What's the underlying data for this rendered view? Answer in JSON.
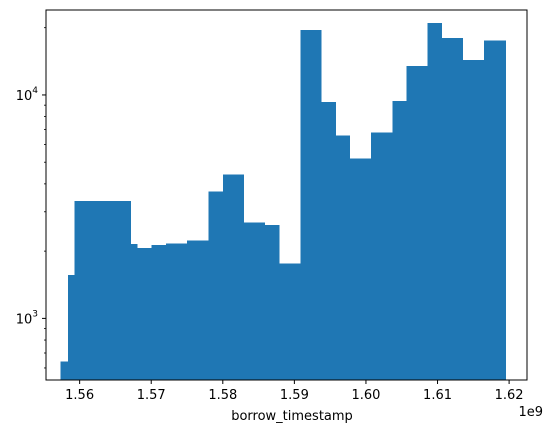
{
  "chart_data": {
    "type": "bar",
    "title": "",
    "xlabel": "borrow_timestamp",
    "ylabel": "",
    "x_offset_label": "1e9",
    "y_scale": "log",
    "grid": false,
    "legend": "none",
    "bar_color": "#1f77b4",
    "xlim": [
      1.5553,
      1.6225
    ],
    "ylim": [
      530,
      24000
    ],
    "x_ticks": [
      {
        "value": 1.56,
        "label": "1.56"
      },
      {
        "value": 1.57,
        "label": "1.57"
      },
      {
        "value": 1.58,
        "label": "1.58"
      },
      {
        "value": 1.59,
        "label": "1.59"
      },
      {
        "value": 1.6,
        "label": "1.60"
      },
      {
        "value": 1.61,
        "label": "1.61"
      },
      {
        "value": 1.62,
        "label": "1.62"
      }
    ],
    "y_ticks": [
      {
        "value": 1000,
        "base": "10",
        "exp": "3"
      },
      {
        "value": 10000,
        "base": "10",
        "exp": "4"
      }
    ],
    "bin_edges": [
      1.5573,
      1.5672,
      1.5771,
      1.587,
      1.5969,
      1.6068,
      1.6167,
      1.6196
    ],
    "bins": [
      {
        "x0": 1.5573,
        "x1": 1.55835,
        "count": 640
      },
      {
        "x0": 1.55835,
        "x1": 1.5593,
        "count": 1560
      },
      {
        "x0": 1.5593,
        "x1": 1.5612,
        "count": 3350
      },
      {
        "x0": 1.5612,
        "x1": 1.56715,
        "count": 3350
      },
      {
        "x0": 1.56715,
        "x1": 1.5681,
        "count": 2150
      },
      {
        "x0": 1.5681,
        "x1": 1.57005,
        "count": 2070
      },
      {
        "x0": 1.57005,
        "x1": 1.57205,
        "count": 2130
      },
      {
        "x0": 1.57205,
        "x1": 1.575,
        "count": 2160
      },
      {
        "x0": 1.575,
        "x1": 1.578,
        "count": 2230
      },
      {
        "x0": 1.578,
        "x1": 1.58,
        "count": 3700
      },
      {
        "x0": 1.58,
        "x1": 1.58295,
        "count": 4400
      },
      {
        "x0": 1.58295,
        "x1": 1.5859,
        "count": 2680
      },
      {
        "x0": 1.5859,
        "x1": 1.5879,
        "count": 2620
      },
      {
        "x0": 1.5879,
        "x1": 1.59085,
        "count": 1760
      },
      {
        "x0": 1.59085,
        "x1": 1.5938,
        "count": 19500
      },
      {
        "x0": 1.5938,
        "x1": 1.5958,
        "count": 9300
      },
      {
        "x0": 1.5958,
        "x1": 1.59775,
        "count": 6600
      },
      {
        "x0": 1.59775,
        "x1": 1.6007,
        "count": 5200
      },
      {
        "x0": 1.6007,
        "x1": 1.6037,
        "count": 6800
      },
      {
        "x0": 1.6037,
        "x1": 1.60565,
        "count": 9400
      },
      {
        "x0": 1.60565,
        "x1": 1.6086,
        "count": 13500
      },
      {
        "x0": 1.6086,
        "x1": 1.6106,
        "count": 21000
      },
      {
        "x0": 1.6106,
        "x1": 1.61355,
        "count": 18000
      },
      {
        "x0": 1.61355,
        "x1": 1.6165,
        "count": 14300
      },
      {
        "x0": 1.6165,
        "x1": 1.61955,
        "count": 17500
      }
    ]
  }
}
